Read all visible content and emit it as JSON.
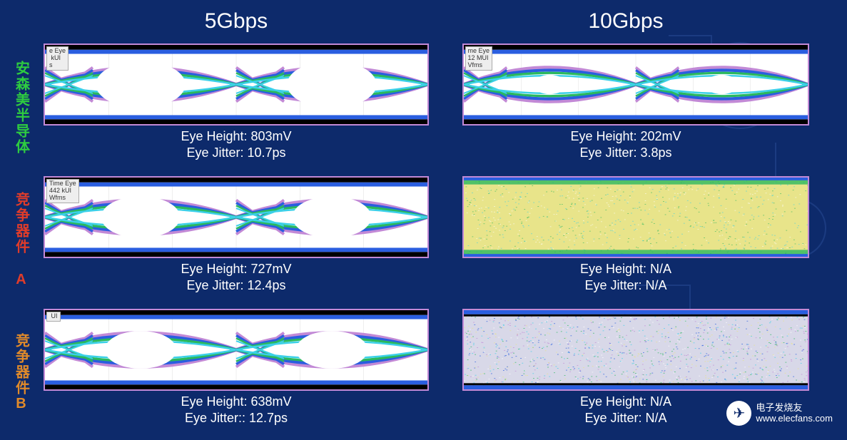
{
  "headers": {
    "col1": "5Gbps",
    "col2": "10Gbps"
  },
  "rows": [
    {
      "label": "安森美半导体",
      "labelColor": "green-label"
    },
    {
      "label": "竞争器件 A",
      "labelColor": "red-label"
    },
    {
      "label": "竞争器件B",
      "labelColor": "orange-label"
    }
  ],
  "cells": {
    "r0c0": {
      "tag": "e Eye\n kUI\ns",
      "eyeHeight": "Eye Height: 803mV",
      "eyeJitter": "Eye Jitter: 10.7ps",
      "diagram": {
        "type": "eye-open",
        "openRatio": 0.85
      }
    },
    "r0c1": {
      "tag": "me Eye\n12 MUI\nVfms",
      "eyeHeight": "Eye Height: 202mV",
      "eyeJitter": "Eye Jitter: 3.8ps",
      "diagram": {
        "type": "eye-open",
        "openRatio": 0.35
      }
    },
    "r1c0": {
      "tag": "Time Eye\n442 kUI\nWfms",
      "eyeHeight": "Eye Height: 727mV",
      "eyeJitter": "Eye Jitter: 12.4ps",
      "diagram": {
        "type": "eye-open",
        "openRatio": 0.75
      }
    },
    "r1c1": {
      "tag": "",
      "eyeHeight": "Eye Height: N/A",
      "eyeJitter": "Eye Jitter: N/A",
      "diagram": {
        "type": "noise-yellow"
      }
    },
    "r2c0": {
      "tag": " UI",
      "eyeHeight": "Eye Height: 638mV",
      "eyeJitter": "Eye Jitter:: 12.7ps",
      "diagram": {
        "type": "eye-open",
        "openRatio": 0.68
      }
    },
    "r2c1": {
      "tag": "",
      "eyeHeight": "Eye Height: N/A",
      "eyeJitter": "Eye Jitter: N/A",
      "diagram": {
        "type": "noise-mixed"
      }
    }
  },
  "palette": {
    "bandOuter": "#c289d6",
    "bandBlue": "#2a5ee0",
    "bandGreen": "#2ab85e",
    "bandCyan": "#3bd0e8",
    "bandBlack": "#000000",
    "bgWhite": "#ffffff"
  },
  "logo": {
    "label": "电子发烧友",
    "url": "www.elecfans.com"
  }
}
